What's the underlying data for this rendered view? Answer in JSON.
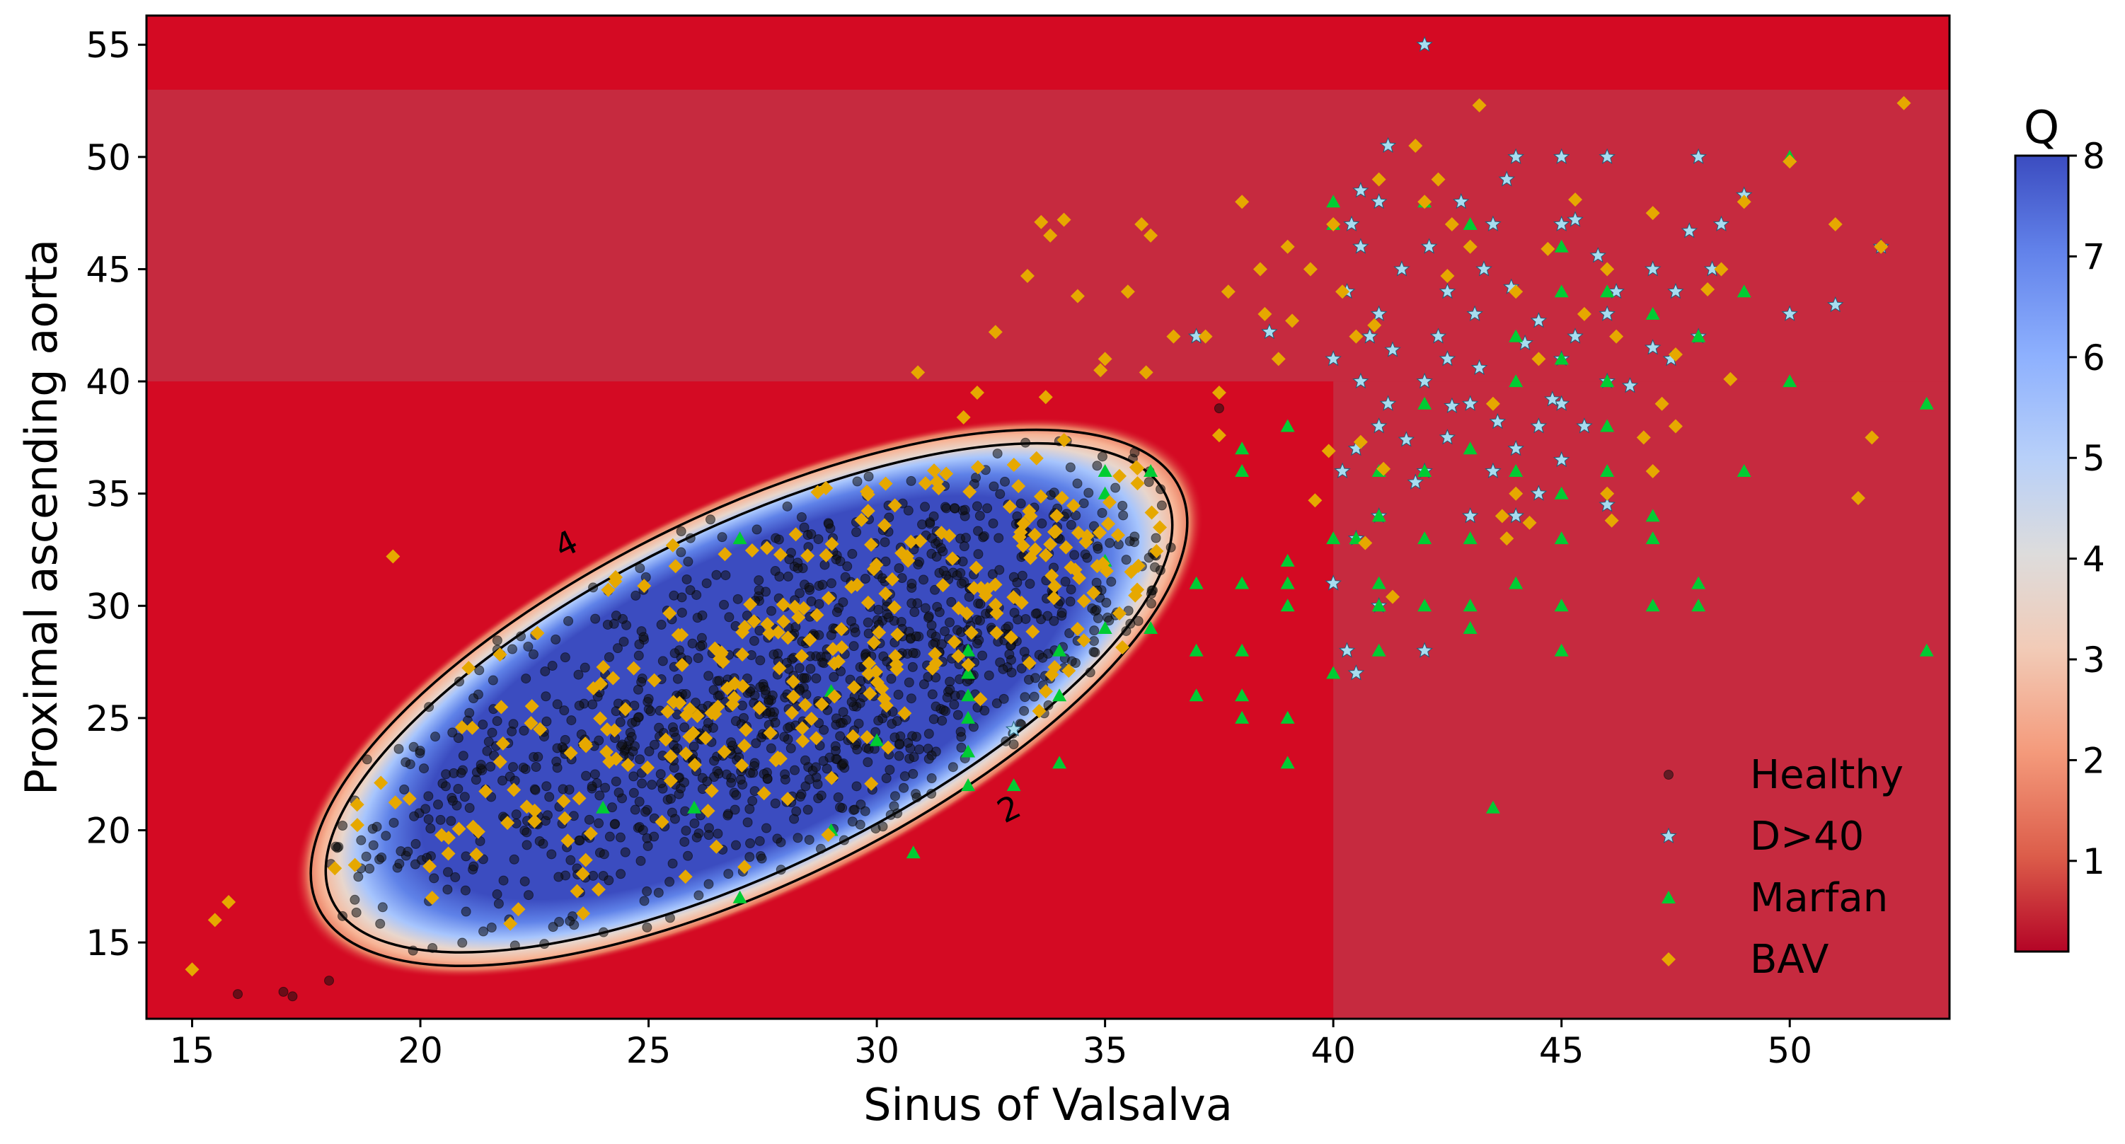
{
  "chart_data": {
    "type": "scatter",
    "title": "",
    "xlabel": "Sinus of Valsalva",
    "ylabel": "Proximal ascending aorta",
    "xlim": [
      14,
      53.5
    ],
    "ylim": [
      11.6,
      56.3
    ],
    "xticks": [
      15,
      20,
      25,
      30,
      35,
      40,
      45,
      50
    ],
    "yticks": [
      15,
      20,
      25,
      30,
      35,
      40,
      45,
      50,
      55
    ],
    "grid": false,
    "background": {
      "description": "Q score heatmap (coolwarm_r colormap); high Q inside ellipse around healthy population",
      "ellipse_center": [
        27.2,
        25.9
      ],
      "ellipse_semi_axes_data": [
        11.8,
        10.1
      ],
      "ellipse_rotation_deg": 26,
      "threshold_regions": [
        {
          "x_from": 14,
          "x_to": 53.5,
          "y_from": 40,
          "y_to": 53,
          "value": 0.4
        },
        {
          "x_from": 40,
          "x_to": 53.5,
          "y_from": 11.6,
          "y_to": 40,
          "value": 0.4
        },
        {
          "x_from": 14,
          "x_to": 53.5,
          "y_from": 53,
          "y_to": 56.3,
          "value": 0.0
        }
      ]
    },
    "contours": [
      {
        "level": 2,
        "label": "2",
        "label_pos": [
          33,
          20.5
        ]
      },
      {
        "level": 4,
        "label": "4",
        "label_pos": [
          23.3,
          32.3
        ]
      }
    ],
    "colorbar": {
      "title": "Q",
      "min": 0.1,
      "max": 8,
      "ticks": [
        1,
        2,
        3,
        4,
        5,
        6,
        7,
        8
      ],
      "colormap": "coolwarm_r"
    },
    "legend": {
      "position": "lower-right",
      "entries": [
        "Healthy",
        "D>40",
        "Marfan",
        "BAV"
      ]
    },
    "series": [
      {
        "name": "Healthy",
        "marker": "circle",
        "color": "#111111",
        "generated": true,
        "distribution": {
          "count": 1200,
          "mean_x": 28.5,
          "mean_y": 26.3,
          "sd_x": 5.4,
          "sd_y": 5.6,
          "corr": 0.65
        },
        "points": [
          [
            16,
            12.7
          ],
          [
            17,
            12.8
          ],
          [
            17.2,
            12.6
          ],
          [
            18,
            13.3
          ],
          [
            37.5,
            38.8
          ]
        ]
      },
      {
        "name": "D>40",
        "marker": "star",
        "color": "#a8dcf0",
        "points": [
          [
            42,
            55
          ],
          [
            33,
            24.5
          ],
          [
            40.5,
            27
          ],
          [
            40.3,
            28
          ],
          [
            41,
            30
          ],
          [
            42,
            28
          ],
          [
            40,
            31
          ],
          [
            40.5,
            33
          ],
          [
            41,
            34
          ],
          [
            40.2,
            36
          ],
          [
            40.5,
            37
          ],
          [
            41,
            38
          ],
          [
            41.2,
            39
          ],
          [
            40.6,
            40
          ],
          [
            40,
            41
          ],
          [
            40.8,
            42
          ],
          [
            41,
            43
          ],
          [
            40.3,
            44
          ],
          [
            41.5,
            45
          ],
          [
            40.6,
            46
          ],
          [
            40.4,
            47
          ],
          [
            41,
            48
          ],
          [
            40.6,
            48.5
          ],
          [
            41.2,
            50.5
          ],
          [
            42,
            40
          ],
          [
            42.5,
            41
          ],
          [
            43,
            39
          ],
          [
            42.3,
            42
          ],
          [
            43.1,
            43
          ],
          [
            42.5,
            44
          ],
          [
            43.3,
            45
          ],
          [
            42.1,
            46
          ],
          [
            43.5,
            47
          ],
          [
            42.8,
            48
          ],
          [
            43.8,
            49
          ],
          [
            44,
            50
          ],
          [
            45,
            50
          ],
          [
            46,
            50
          ],
          [
            48,
            50
          ],
          [
            49,
            48.3
          ],
          [
            48.5,
            47
          ],
          [
            48.3,
            45
          ],
          [
            47.5,
            44
          ],
          [
            48,
            42
          ],
          [
            47,
            41.5
          ],
          [
            46,
            40
          ],
          [
            45,
            39
          ],
          [
            44.5,
            38
          ],
          [
            44,
            37
          ],
          [
            43.5,
            36
          ],
          [
            44,
            34
          ],
          [
            44.5,
            35
          ],
          [
            45,
            36.5
          ],
          [
            46,
            34.5
          ],
          [
            45.5,
            38
          ],
          [
            45,
            41
          ],
          [
            45.3,
            42
          ],
          [
            46,
            43
          ],
          [
            46.2,
            44
          ],
          [
            47,
            45
          ],
          [
            45,
            47
          ],
          [
            45.3,
            47.2
          ],
          [
            47.4,
            41
          ],
          [
            50,
            43
          ],
          [
            51,
            43.4
          ],
          [
            52,
            46
          ],
          [
            44.5,
            42.7
          ],
          [
            42.5,
            37.5
          ],
          [
            43,
            34
          ],
          [
            42,
            36
          ],
          [
            41.8,
            35.5
          ],
          [
            43.2,
            40.6
          ],
          [
            44.2,
            41.7
          ],
          [
            46.5,
            39.8
          ],
          [
            44.8,
            39.2
          ],
          [
            43.6,
            38.2
          ],
          [
            41.6,
            37.4
          ],
          [
            42.6,
            38.9
          ],
          [
            41.3,
            41.4
          ],
          [
            43.9,
            44.2
          ],
          [
            45.8,
            45.6
          ],
          [
            47.8,
            46.7
          ],
          [
            37,
            42
          ],
          [
            38.6,
            42.2
          ]
        ]
      },
      {
        "name": "Marfan",
        "marker": "triangle",
        "color": "#00cc33",
        "points": [
          [
            24,
            21
          ],
          [
            26,
            21
          ],
          [
            27,
            33
          ],
          [
            27,
            17
          ],
          [
            29,
            20
          ],
          [
            29,
            26.2
          ],
          [
            30,
            24
          ],
          [
            30.8,
            19
          ],
          [
            32,
            27
          ],
          [
            32,
            25
          ],
          [
            32,
            23.5
          ],
          [
            32,
            22
          ],
          [
            32,
            26
          ],
          [
            32,
            28
          ],
          [
            33,
            22
          ],
          [
            34,
            26
          ],
          [
            34,
            28
          ],
          [
            34,
            23
          ],
          [
            35,
            32
          ],
          [
            35,
            35
          ],
          [
            35,
            36
          ],
          [
            35,
            29
          ],
          [
            36,
            36
          ],
          [
            36,
            29
          ],
          [
            37,
            31
          ],
          [
            37,
            28
          ],
          [
            37,
            26
          ],
          [
            38,
            26
          ],
          [
            38,
            25
          ],
          [
            38,
            28
          ],
          [
            38,
            31
          ],
          [
            38,
            36
          ],
          [
            38,
            37
          ],
          [
            39,
            25
          ],
          [
            39,
            23
          ],
          [
            39,
            30
          ],
          [
            39,
            31
          ],
          [
            39,
            32
          ],
          [
            39,
            38
          ],
          [
            40,
            27
          ],
          [
            40,
            33
          ],
          [
            40.5,
            33
          ],
          [
            41,
            34
          ],
          [
            41,
            36
          ],
          [
            41,
            31
          ],
          [
            41,
            30
          ],
          [
            41,
            28
          ],
          [
            42,
            30
          ],
          [
            42,
            33
          ],
          [
            42,
            36
          ],
          [
            42,
            39
          ],
          [
            42,
            48
          ],
          [
            43,
            29
          ],
          [
            43,
            30
          ],
          [
            43,
            33
          ],
          [
            43,
            37
          ],
          [
            43,
            47
          ],
          [
            43.5,
            21
          ],
          [
            44,
            36
          ],
          [
            44,
            31
          ],
          [
            44,
            40
          ],
          [
            44,
            42
          ],
          [
            45,
            46
          ],
          [
            45,
            44
          ],
          [
            45,
            41
          ],
          [
            45,
            35
          ],
          [
            45,
            33
          ],
          [
            45,
            30
          ],
          [
            45,
            28
          ],
          [
            46,
            38
          ],
          [
            46,
            36
          ],
          [
            46,
            40
          ],
          [
            46,
            44
          ],
          [
            47,
            43
          ],
          [
            47,
            34
          ],
          [
            47,
            33
          ],
          [
            47,
            30
          ],
          [
            48,
            31
          ],
          [
            48,
            30
          ],
          [
            48,
            42
          ],
          [
            49,
            44
          ],
          [
            49,
            36
          ],
          [
            50,
            40
          ],
          [
            50,
            50
          ],
          [
            53,
            39
          ],
          [
            53,
            28
          ],
          [
            40,
            48
          ],
          [
            40,
            47
          ]
        ]
      },
      {
        "name": "BAV",
        "marker": "diamond",
        "color": "#e6a800",
        "generated": true,
        "distribution": {
          "count": 300,
          "mean_x": 30.3,
          "mean_y": 29.5,
          "sd_x": 6.3,
          "sd_y": 6.6,
          "corr": 0.8
        },
        "points": [
          [
            15,
            13.8
          ],
          [
            15.5,
            16
          ],
          [
            15.8,
            16.8
          ],
          [
            19.4,
            32.2
          ],
          [
            43.2,
            52.3
          ],
          [
            52.5,
            52.4
          ],
          [
            51.8,
            37.5
          ],
          [
            51.5,
            34.8
          ],
          [
            52,
            46
          ],
          [
            51,
            47
          ],
          [
            50,
            49.8
          ],
          [
            49,
            48
          ],
          [
            48.5,
            45
          ],
          [
            47,
            47.5
          ],
          [
            46,
            45
          ],
          [
            46.2,
            42
          ],
          [
            47.2,
            39
          ],
          [
            47.5,
            38
          ],
          [
            47,
            36
          ],
          [
            46.8,
            37.5
          ],
          [
            46,
            35
          ],
          [
            44,
            35
          ],
          [
            43.8,
            33
          ],
          [
            43.7,
            34
          ],
          [
            43.5,
            39
          ],
          [
            44.5,
            41
          ],
          [
            45.5,
            43
          ],
          [
            44,
            44
          ],
          [
            43,
            46
          ],
          [
            42,
            48
          ],
          [
            42.6,
            47
          ],
          [
            42.3,
            49
          ],
          [
            41.8,
            50.5
          ],
          [
            41,
            49
          ],
          [
            40,
            47
          ],
          [
            40.5,
            42
          ],
          [
            40.2,
            44
          ],
          [
            39.5,
            45
          ],
          [
            39,
            46
          ],
          [
            38.8,
            41
          ],
          [
            38.5,
            43
          ],
          [
            38.4,
            45
          ],
          [
            38,
            48
          ],
          [
            37.7,
            44
          ],
          [
            37.5,
            39.5
          ],
          [
            37.2,
            42
          ],
          [
            36.5,
            42
          ],
          [
            36,
            46.5
          ],
          [
            35.8,
            47
          ],
          [
            35.5,
            44
          ],
          [
            35,
            41
          ],
          [
            34.9,
            40.5
          ],
          [
            34.4,
            43.8
          ],
          [
            34.1,
            47.2
          ],
          [
            33.8,
            46.5
          ],
          [
            33.3,
            44.7
          ],
          [
            33.6,
            47.1
          ],
          [
            32.6,
            42.2
          ],
          [
            32.2,
            39.5
          ],
          [
            31.9,
            38.4
          ],
          [
            30.9,
            40.4
          ],
          [
            33.7,
            39.3
          ],
          [
            35.9,
            40.4
          ],
          [
            39.9,
            36.9
          ],
          [
            40.7,
            32.8
          ],
          [
            41.3,
            30.4
          ],
          [
            39.6,
            34.7
          ],
          [
            40.9,
            42.5
          ],
          [
            41.1,
            36.1
          ],
          [
            42.5,
            44.7
          ],
          [
            44.7,
            45.9
          ],
          [
            45.3,
            48.1
          ],
          [
            47.5,
            41.2
          ],
          [
            48.2,
            44.1
          ],
          [
            48.7,
            40.1
          ],
          [
            46.1,
            33.8
          ],
          [
            44.3,
            33.7
          ],
          [
            40.6,
            37.3
          ],
          [
            39.1,
            42.7
          ],
          [
            37.5,
            37.6
          ]
        ]
      }
    ]
  }
}
